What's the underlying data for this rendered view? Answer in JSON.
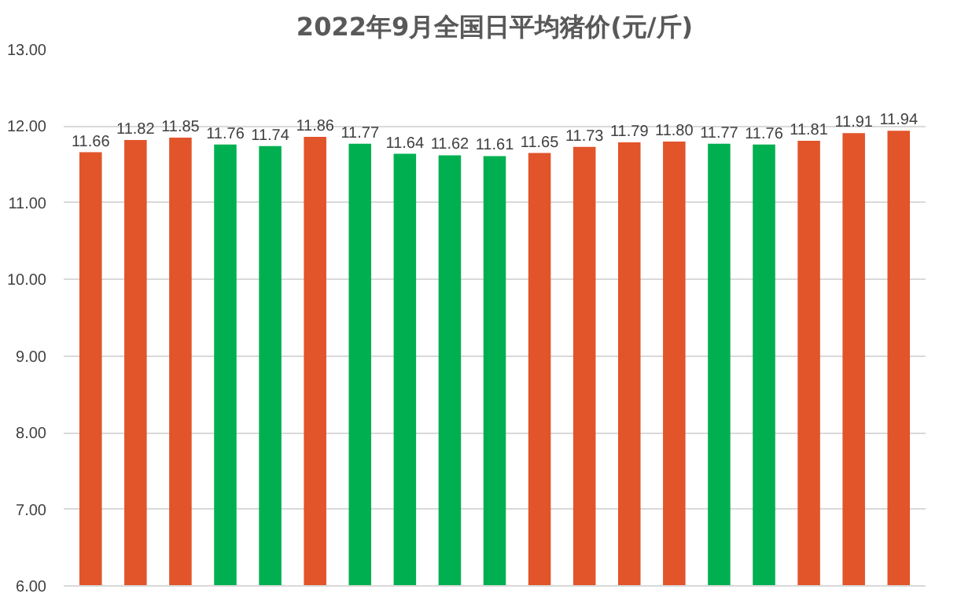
{
  "chart_data": {
    "type": "bar",
    "title": "2022年9月全国日平均猪价(元/斤)",
    "categories": [
      null,
      null,
      null,
      null,
      null,
      null,
      null,
      null,
      null,
      null,
      null,
      null,
      null,
      null,
      null,
      null,
      null,
      null,
      null
    ],
    "values": [
      11.66,
      11.82,
      11.85,
      11.76,
      11.74,
      11.86,
      11.77,
      11.64,
      11.62,
      11.61,
      11.65,
      11.73,
      11.79,
      11.8,
      11.77,
      11.76,
      11.81,
      11.91,
      11.94
    ],
    "value_labels": [
      "11.66",
      "11.82",
      "11.85",
      "11.76",
      "11.74",
      "11.86",
      "11.77",
      "11.64",
      "11.62",
      "11.61",
      "11.65",
      "11.73",
      "11.79",
      "11.80",
      "11.77",
      "11.76",
      "11.81",
      "11.91",
      "11.94"
    ],
    "colors": [
      "#e2542a",
      "#e2542a",
      "#e2542a",
      "#00b050",
      "#00b050",
      "#e2542a",
      "#00b050",
      "#00b050",
      "#00b050",
      "#00b050",
      "#e2542a",
      "#e2542a",
      "#e2542a",
      "#e2542a",
      "#00b050",
      "#00b050",
      "#e2542a",
      "#e2542a",
      "#e2542a"
    ],
    "ylim": [
      6,
      13
    ],
    "yticks": [
      {
        "value": 6,
        "label": "6.00"
      },
      {
        "value": 7,
        "label": "7.00"
      },
      {
        "value": 8,
        "label": "8.00"
      },
      {
        "value": 9,
        "label": "9.00"
      },
      {
        "value": 10,
        "label": "10.00"
      },
      {
        "value": 11,
        "label": "11.00"
      },
      {
        "value": 12,
        "label": "12.00"
      },
      {
        "value": 13,
        "label": "13.00"
      }
    ],
    "grid": "y"
  }
}
